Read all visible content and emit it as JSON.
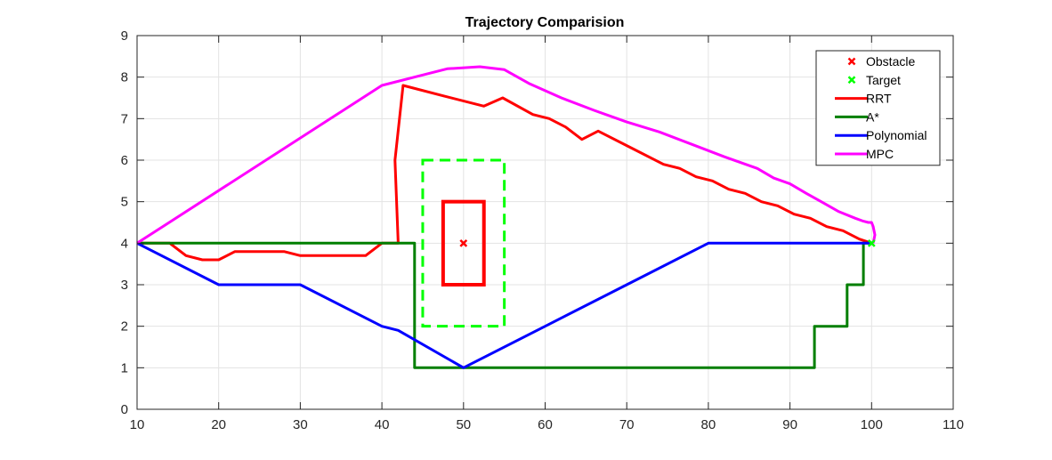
{
  "chart_data": {
    "type": "line",
    "title": "Trajectory Comparision",
    "xlabel": "",
    "ylabel": "",
    "xlim": [
      10,
      110
    ],
    "ylim": [
      0,
      9
    ],
    "xticks": [
      10,
      20,
      30,
      40,
      50,
      60,
      70,
      80,
      90,
      100,
      110
    ],
    "yticks": [
      0,
      1,
      2,
      3,
      4,
      5,
      6,
      7,
      8,
      9
    ],
    "grid": true,
    "legend_position": "top-right",
    "obstacle_box": {
      "x": [
        47.5,
        52.5
      ],
      "y": [
        3,
        5
      ],
      "color": "#ff0000"
    },
    "safety_box": {
      "x": [
        45,
        55
      ],
      "y": [
        2,
        6
      ],
      "color": "#00ff00"
    },
    "series": [
      {
        "name": "Obstacle",
        "kind": "marker",
        "color": "#ff0000",
        "x": [
          50
        ],
        "y": [
          4
        ]
      },
      {
        "name": "Target",
        "kind": "marker",
        "color": "#00ff00",
        "x": [
          100
        ],
        "y": [
          4
        ]
      },
      {
        "name": "RRT",
        "kind": "line",
        "color": "#ff0000",
        "x": [
          10,
          14,
          16,
          18,
          20,
          22,
          24,
          26,
          28,
          30,
          32,
          34,
          36,
          38,
          40,
          42,
          41.6,
          42.6,
          47.5,
          52.5,
          54.8,
          58.5,
          60.5,
          62.5,
          64.5,
          66.5,
          70.5,
          74.5,
          76.5,
          78.5,
          80.5,
          82.5,
          84.5,
          86.5,
          88.5,
          90.5,
          92.5,
          94.5,
          96.5,
          98.5,
          100
        ],
        "y": [
          4,
          4,
          3.7,
          3.6,
          3.6,
          3.8,
          3.8,
          3.8,
          3.8,
          3.7,
          3.7,
          3.7,
          3.7,
          3.7,
          4,
          4,
          6,
          7.8,
          7.55,
          7.3,
          7.5,
          7.1,
          7.0,
          6.8,
          6.5,
          6.7,
          6.3,
          5.9,
          5.8,
          5.6,
          5.5,
          5.3,
          5.2,
          5.0,
          4.9,
          4.7,
          4.6,
          4.4,
          4.3,
          4.1,
          4.0
        ]
      },
      {
        "name": "A*",
        "kind": "line",
        "color": "#007f00",
        "x": [
          10,
          44,
          44,
          93,
          93,
          97,
          97,
          99,
          99,
          100
        ],
        "y": [
          4,
          4,
          1,
          1,
          2,
          2,
          3,
          3,
          4,
          4
        ]
      },
      {
        "name": "Polynomial",
        "kind": "line",
        "color": "#0000ff",
        "x": [
          10,
          20,
          25,
          30,
          40,
          42,
          50,
          60,
          70,
          80,
          90,
          100
        ],
        "y": [
          4,
          3,
          3,
          3,
          2,
          1.9,
          1,
          2,
          3,
          4,
          4,
          4
        ]
      },
      {
        "name": "MPC",
        "kind": "line",
        "color": "#ff00ff",
        "x": [
          10,
          40,
          45,
          48,
          52,
          55,
          58,
          62,
          66,
          70,
          74,
          78,
          82,
          86,
          88,
          90,
          92,
          94,
          96,
          98,
          99,
          99.6,
          100,
          100.2,
          100.4,
          100.2
        ],
        "y": [
          4,
          7.8,
          8.05,
          8.2,
          8.25,
          8.18,
          7.85,
          7.5,
          7.2,
          6.92,
          6.68,
          6.38,
          6.08,
          5.8,
          5.57,
          5.43,
          5.2,
          4.98,
          4.76,
          4.6,
          4.53,
          4.5,
          4.5,
          4.4,
          4.2,
          4.0
        ]
      }
    ]
  }
}
